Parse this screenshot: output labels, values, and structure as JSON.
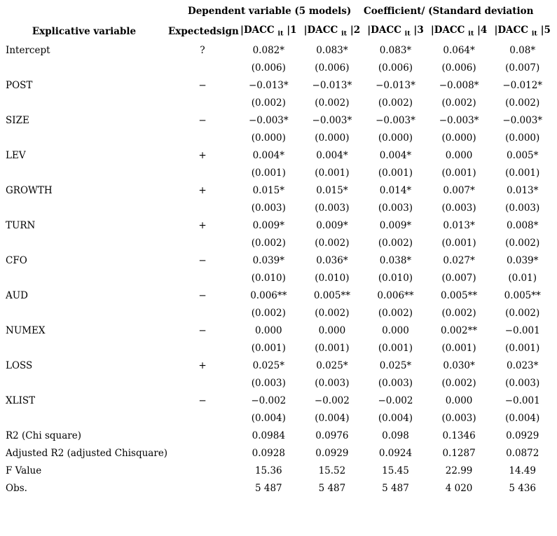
{
  "header": {
    "group_dependent": "Dependent variable (5 models)",
    "group_coefficient": "Coefficient/ (Standard deviation",
    "col_explicative": "Explicative variable",
    "col_expected_sign": "Expectedsign",
    "dacc_prefix": "|DACC",
    "dacc_subscript": "it",
    "model_suffixes": [
      "|1",
      "|2",
      "|3",
      "|4",
      "|5"
    ]
  },
  "rows": [
    {
      "label": "Intercept",
      "sign": "?",
      "coefs": [
        "0.082*",
        "0.083*",
        "0.083*",
        "0.064*",
        "0.08*"
      ],
      "sds": [
        "(0.006)",
        "(0.006)",
        "(0.006)",
        "(0.006)",
        "(0.007)"
      ]
    },
    {
      "label": "POST",
      "sign": "−",
      "coefs": [
        "−0.013*",
        "−0.013*",
        "−0.013*",
        "−0.008*",
        "−0.012*"
      ],
      "sds": [
        "(0.002)",
        "(0.002)",
        "(0.002)",
        "(0.002)",
        "(0.002)"
      ]
    },
    {
      "label": "SIZE",
      "sign": "−",
      "coefs": [
        "−0.003*",
        "−0.003*",
        "−0.003*",
        "−0.003*",
        "−0.003*"
      ],
      "sds": [
        "(0.000)",
        "(0.000)",
        "(0.000)",
        "(0.000)",
        "(0.000)"
      ]
    },
    {
      "label": "LEV",
      "sign": "+",
      "coefs": [
        "0.004*",
        "0.004*",
        "0.004*",
        "0.000",
        "0.005*"
      ],
      "sds": [
        "(0.001)",
        "(0.001)",
        "(0.001)",
        "(0.001)",
        "(0.001)"
      ]
    },
    {
      "label": "GROWTH",
      "sign": "+",
      "coefs": [
        "0.015*",
        "0.015*",
        "0.014*",
        "0.007*",
        "0.013*"
      ],
      "sds": [
        "(0.003)",
        "(0.003)",
        "(0.003)",
        "(0.003)",
        "(0.003)"
      ]
    },
    {
      "label": "TURN",
      "sign": "+",
      "coefs": [
        "0.009*",
        "0.009*",
        "0.009*",
        "0.013*",
        "0.008*"
      ],
      "sds": [
        "(0.002)",
        "(0.002)",
        "(0.002)",
        "(0.001)",
        "(0.002)"
      ]
    },
    {
      "label": "CFO",
      "sign": "−",
      "coefs": [
        "0.039*",
        "0.036*",
        "0.038*",
        "0.027*",
        "0.039*"
      ],
      "sds": [
        "(0.010)",
        "(0.010)",
        "(0.010)",
        "(0.007)",
        "(0.01)"
      ]
    },
    {
      "label": "AUD",
      "sign": "−",
      "coefs": [
        "0.006**",
        "0.005**",
        "0.006**",
        "0.005**",
        "0.005**"
      ],
      "sds": [
        "(0.002)",
        "(0.002)",
        "(0.002)",
        "(0.002)",
        "(0.002)"
      ]
    },
    {
      "label": "NUMEX",
      "sign": "−",
      "coefs": [
        "0.000",
        "0.000",
        "0.000",
        "0.002**",
        "−0.001"
      ],
      "sds": [
        "(0.001)",
        "(0.001)",
        "(0.001)",
        "(0.001)",
        "(0.001)"
      ]
    },
    {
      "label": "LOSS",
      "sign": "+",
      "coefs": [
        "0.025*",
        "0.025*",
        "0.025*",
        "0.030*",
        "0.023*"
      ],
      "sds": [
        "(0.003)",
        "(0.003)",
        "(0.003)",
        "(0.002)",
        "(0.003)"
      ]
    },
    {
      "label": "XLIST",
      "sign": "−",
      "coefs": [
        "−0.002",
        "−0.002",
        "−0.002",
        "0.000",
        "−0.001"
      ],
      "sds": [
        "(0.004)",
        "(0.004)",
        "(0.004)",
        "(0.003)",
        "(0.004)"
      ]
    }
  ],
  "stats": [
    {
      "label": "R2 (Chi square)",
      "values": [
        "0.0984",
        "0.0976",
        "0.098",
        "0.1346",
        "0.0929"
      ]
    },
    {
      "label": "Adjusted R2 (adjusted Chisquare)",
      "values": [
        "0.0928",
        "0.0929",
        "0.0924",
        "0.1287",
        "0.0872"
      ]
    },
    {
      "label": "F Value",
      "values": [
        "15.36",
        "15.52",
        "15.45",
        "22.99",
        "14.49"
      ]
    },
    {
      "label": "Obs.",
      "values": [
        "5 487",
        "5 487",
        "5 487",
        "4 020",
        "5 436"
      ]
    }
  ]
}
